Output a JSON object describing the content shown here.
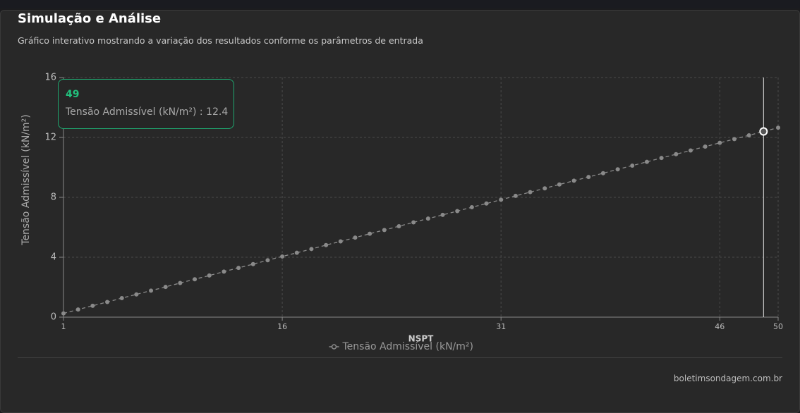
{
  "title": "Simulação e Análise",
  "subtitle": "Gráfico interativo mostrando a variação dos resultados conforme os parâmetros de entrada",
  "footer": "boletimsondagem.com.br",
  "chart_data": {
    "type": "line",
    "x_label": "NSPT",
    "y_label": "Tensão Admissível (kN/m²)",
    "x": [
      1,
      2,
      3,
      4,
      5,
      6,
      7,
      8,
      9,
      10,
      11,
      12,
      13,
      14,
      15,
      16,
      17,
      18,
      19,
      20,
      21,
      22,
      23,
      24,
      25,
      26,
      27,
      28,
      29,
      30,
      31,
      32,
      33,
      34,
      35,
      36,
      37,
      38,
      39,
      40,
      41,
      42,
      43,
      44,
      45,
      46,
      47,
      48,
      49,
      50
    ],
    "series": [
      {
        "name": "Tensão Admissível (kN/m²)",
        "color": "#8a8a8a",
        "values": [
          0.25,
          0.51,
          0.76,
          1.01,
          1.27,
          1.52,
          1.77,
          2.02,
          2.28,
          2.53,
          2.78,
          3.04,
          3.29,
          3.54,
          3.8,
          4.05,
          4.3,
          4.55,
          4.81,
          5.06,
          5.31,
          5.57,
          5.82,
          6.07,
          6.33,
          6.58,
          6.83,
          7.08,
          7.34,
          7.59,
          7.84,
          8.1,
          8.35,
          8.6,
          8.86,
          9.11,
          9.36,
          9.61,
          9.87,
          10.12,
          10.37,
          10.63,
          10.88,
          11.13,
          11.39,
          11.64,
          11.89,
          12.14,
          12.4,
          12.65
        ]
      }
    ],
    "xlim": [
      1,
      50
    ],
    "xticks": [
      1,
      16,
      31,
      46,
      50
    ],
    "ylim": [
      0,
      16
    ],
    "yticks": [
      0,
      4,
      8,
      12,
      16
    ],
    "grid": true,
    "legend": "bottom",
    "tooltip": {
      "title": "49",
      "text": "Tensão Admissível (kN/m²) : 12.4"
    }
  }
}
